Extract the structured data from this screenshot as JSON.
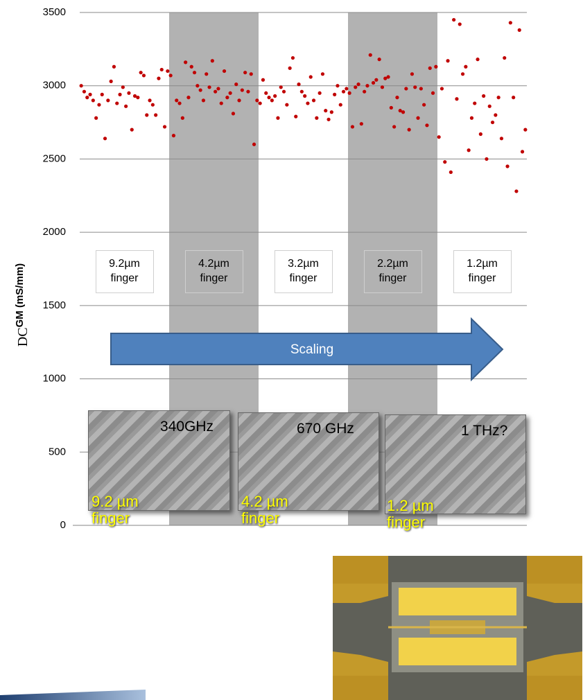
{
  "chart_data": {
    "type": "scatter",
    "ylabel_prefix": "DC",
    "ylabel": "GM (mS/mm)",
    "color": "#c00000",
    "values": [
      3000,
      2960,
      2920,
      2940,
      2900,
      2780,
      2870,
      2940,
      2640,
      2900,
      3030,
      3130,
      2880,
      2940,
      2990,
      2860,
      2950,
      2700,
      2930,
      2920,
      3090,
      3070,
      2800,
      2900,
      2870,
      2800,
      3050,
      3110,
      2720,
      3100,
      3070,
      2660,
      2900,
      2880,
      2780,
      3160,
      2920,
      3130,
      3090,
      3000,
      2970,
      2900,
      3080,
      2990,
      3170,
      2960,
      2980,
      2880,
      3100,
      2920,
      2950,
      2810,
      3010,
      2900,
      2970,
      3090,
      2960,
      3080,
      2600,
      2900,
      2880,
      3040,
      2950,
      2920,
      2900,
      2930,
      2780,
      2990,
      2960,
      2870,
      3120,
      3190,
      2790,
      3010,
      2960,
      2930,
      2880,
      3060,
      2900,
      2780,
      2950,
      3080,
      2830,
      2770,
      2820,
      2940,
      3000,
      2870,
      2960,
      2980,
      2950,
      2720,
      2990,
      3010,
      2740,
      2960,
      3000,
      3210,
      3020,
      3040,
      3180,
      2990,
      3050,
      3060,
      2850,
      2720,
      2920,
      2830,
      2820,
      2980,
      2700,
      3080,
      2990,
      2780,
      2980,
      2870,
      2730,
      3120,
      2950,
      3130,
      2650,
      2980,
      2480,
      3170,
      2410,
      3450,
      2910,
      3420,
      3080,
      3130,
      2560,
      2780,
      2880,
      3180,
      2670,
      2930,
      2500,
      2860,
      2750,
      2800,
      2920,
      2640,
      3190,
      2450,
      3430,
      2920,
      2280,
      3380,
      2550,
      2700
    ],
    "ylim": [
      0,
      3500
    ],
    "yticks": [
      0,
      500,
      1000,
      1500,
      2000,
      2500,
      3000,
      3500
    ],
    "grid": true,
    "group_labels": [
      "9.2µm finger",
      "4.2µm finger",
      "3.2µm finger",
      "2.2µm finger",
      "1.2µm finger"
    ],
    "annotation": "Scaling"
  },
  "images": [
    {
      "overlay": "340GHz",
      "caption": "9.2 µm finger"
    },
    {
      "overlay": "670 GHz",
      "caption": "4.2 µm finger"
    },
    {
      "overlay": "1 THz?",
      "caption": "1.2 µm finger"
    }
  ]
}
